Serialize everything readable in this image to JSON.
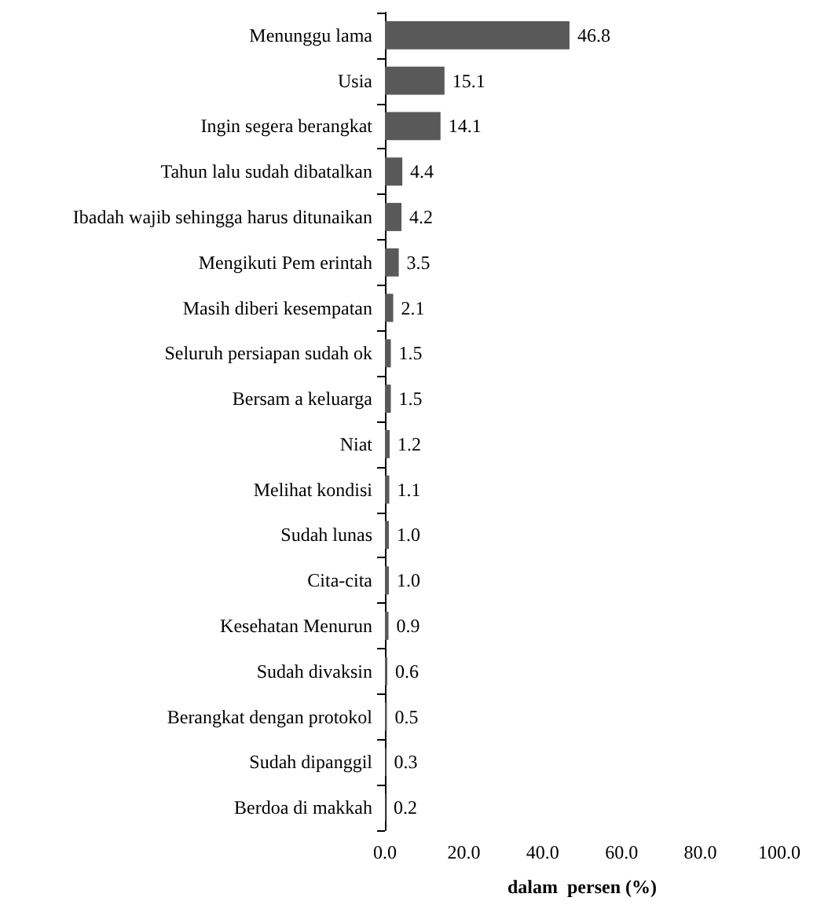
{
  "chart_data": {
    "type": "bar",
    "orientation": "horizontal",
    "xlabel": "dalam  persen (%)",
    "categories": [
      "Menunggu lama",
      "Usia",
      "Ingin segera berangkat",
      "Tahun lalu sudah dibatalkan",
      "Ibadah wajib sehingga harus ditunaikan",
      "Mengikuti Pem erintah",
      "Masih diberi kesempatan",
      "Seluruh persiapan sudah ok",
      "Bersam a keluarga",
      "Niat",
      "Melihat kondisi",
      "Sudah lunas",
      "Cita-cita",
      "Kesehatan Menurun",
      "Sudah divaksin",
      "Berangkat dengan protokol",
      "Sudah dipanggil",
      "Berdoa di makkah"
    ],
    "values": [
      46.8,
      15.1,
      14.1,
      4.4,
      4.2,
      3.5,
      2.1,
      1.5,
      1.5,
      1.2,
      1.1,
      1.0,
      1.0,
      0.9,
      0.6,
      0.5,
      0.3,
      0.2
    ],
    "value_labels": [
      "46.8",
      "15.1",
      "14.1",
      "4.4",
      "4.2",
      "3.5",
      "2.1",
      "1.5",
      "1.5",
      "1.2",
      "1.1",
      "1.0",
      "1.0",
      "0.9",
      "0.6",
      "0.5",
      "0.3",
      "0.2"
    ],
    "color": "#595959",
    "xlim": [
      0,
      100
    ],
    "xticks": [
      {
        "value": 0,
        "label": "0.0"
      },
      {
        "value": 20,
        "label": "20.0"
      },
      {
        "value": 40,
        "label": "40.0"
      },
      {
        "value": 60,
        "label": "60.0"
      },
      {
        "value": 80,
        "label": "80.0"
      },
      {
        "value": 100,
        "label": "100.0"
      }
    ],
    "grid": false
  }
}
